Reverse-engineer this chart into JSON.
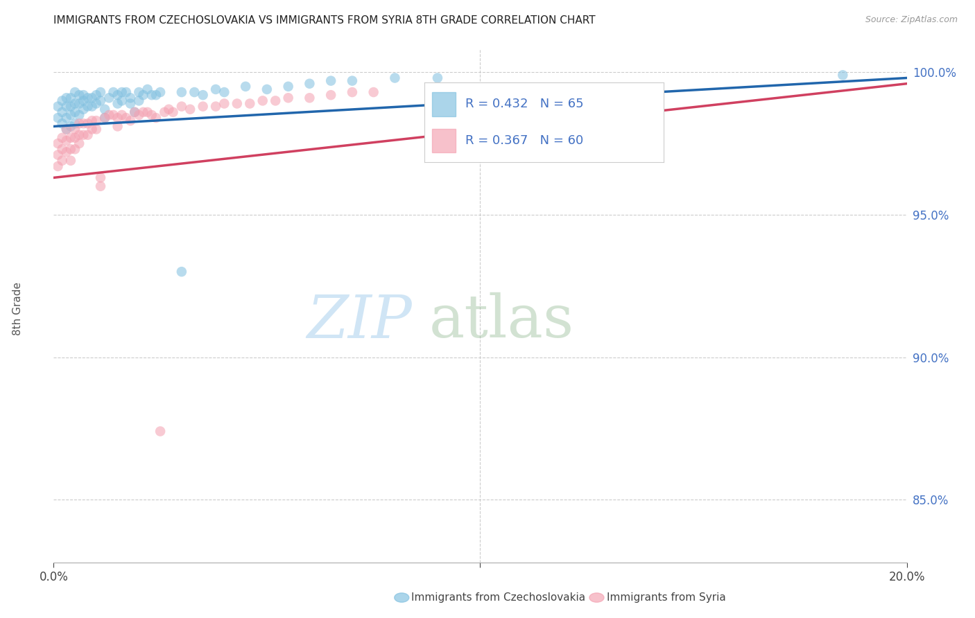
{
  "title": "IMMIGRANTS FROM CZECHOSLOVAKIA VS IMMIGRANTS FROM SYRIA 8TH GRADE CORRELATION CHART",
  "source": "Source: ZipAtlas.com",
  "ylabel": "8th Grade",
  "r_czech": 0.432,
  "n_czech": 65,
  "r_syria": 0.367,
  "n_syria": 60,
  "color_czech": "#7fbfdf",
  "color_syria": "#f4a0b0",
  "trendline_czech": "#2166ac",
  "trendline_syria": "#d04060",
  "legend_label_czech": "Immigrants from Czechoslovakia",
  "legend_label_syria": "Immigrants from Syria",
  "xmin": 0.0,
  "xmax": 0.2,
  "ymin": 0.828,
  "ymax": 1.008,
  "yticks": [
    0.85,
    0.9,
    0.95,
    1.0
  ],
  "ytick_labels": [
    "85.0%",
    "90.0%",
    "95.0%",
    "100.0%"
  ],
  "czech_x": [
    0.001,
    0.001,
    0.002,
    0.002,
    0.002,
    0.003,
    0.003,
    0.003,
    0.003,
    0.004,
    0.004,
    0.004,
    0.004,
    0.005,
    0.005,
    0.005,
    0.005,
    0.006,
    0.006,
    0.006,
    0.007,
    0.007,
    0.007,
    0.008,
    0.008,
    0.009,
    0.009,
    0.01,
    0.01,
    0.011,
    0.011,
    0.012,
    0.012,
    0.013,
    0.014,
    0.015,
    0.015,
    0.016,
    0.016,
    0.017,
    0.018,
    0.018,
    0.019,
    0.02,
    0.02,
    0.021,
    0.022,
    0.023,
    0.024,
    0.025,
    0.03,
    0.03,
    0.033,
    0.035,
    0.038,
    0.04,
    0.045,
    0.05,
    0.055,
    0.06,
    0.065,
    0.07,
    0.08,
    0.09,
    0.185
  ],
  "czech_y": [
    0.988,
    0.984,
    0.99,
    0.986,
    0.982,
    0.991,
    0.988,
    0.984,
    0.98,
    0.991,
    0.988,
    0.985,
    0.981,
    0.993,
    0.989,
    0.986,
    0.982,
    0.992,
    0.989,
    0.985,
    0.992,
    0.99,
    0.987,
    0.991,
    0.988,
    0.991,
    0.988,
    0.992,
    0.989,
    0.993,
    0.99,
    0.987,
    0.984,
    0.991,
    0.993,
    0.992,
    0.989,
    0.993,
    0.99,
    0.993,
    0.991,
    0.989,
    0.986,
    0.993,
    0.99,
    0.992,
    0.994,
    0.992,
    0.992,
    0.993,
    0.993,
    0.93,
    0.993,
    0.992,
    0.994,
    0.993,
    0.995,
    0.994,
    0.995,
    0.996,
    0.997,
    0.997,
    0.998,
    0.998,
    0.999
  ],
  "syria_x": [
    0.001,
    0.001,
    0.001,
    0.002,
    0.002,
    0.002,
    0.003,
    0.003,
    0.003,
    0.004,
    0.004,
    0.004,
    0.005,
    0.005,
    0.005,
    0.006,
    0.006,
    0.006,
    0.007,
    0.007,
    0.008,
    0.008,
    0.009,
    0.009,
    0.01,
    0.01,
    0.011,
    0.011,
    0.012,
    0.013,
    0.014,
    0.015,
    0.015,
    0.016,
    0.017,
    0.018,
    0.019,
    0.02,
    0.021,
    0.022,
    0.023,
    0.024,
    0.025,
    0.026,
    0.027,
    0.028,
    0.03,
    0.032,
    0.035,
    0.038,
    0.04,
    0.043,
    0.046,
    0.049,
    0.052,
    0.055,
    0.06,
    0.065,
    0.07,
    0.075
  ],
  "syria_y": [
    0.975,
    0.971,
    0.967,
    0.977,
    0.973,
    0.969,
    0.98,
    0.976,
    0.972,
    0.977,
    0.973,
    0.969,
    0.98,
    0.977,
    0.973,
    0.982,
    0.978,
    0.975,
    0.982,
    0.978,
    0.982,
    0.978,
    0.983,
    0.98,
    0.983,
    0.98,
    0.963,
    0.96,
    0.984,
    0.985,
    0.985,
    0.984,
    0.981,
    0.985,
    0.984,
    0.983,
    0.986,
    0.985,
    0.986,
    0.986,
    0.985,
    0.984,
    0.874,
    0.986,
    0.987,
    0.986,
    0.988,
    0.987,
    0.988,
    0.988,
    0.989,
    0.989,
    0.989,
    0.99,
    0.99,
    0.991,
    0.991,
    0.992,
    0.993,
    0.993
  ]
}
